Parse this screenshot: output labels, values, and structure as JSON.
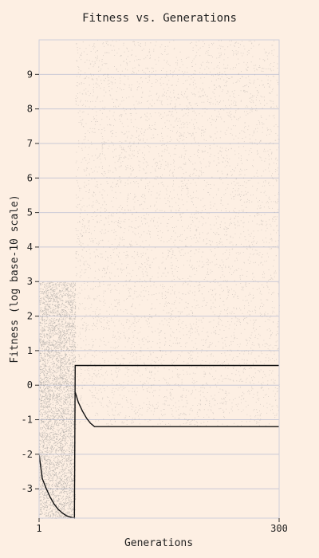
{
  "chart_data": {
    "type": "scatter",
    "title": "Fitness vs. Generations",
    "xlabel": "Generations",
    "ylabel": "Fitness (log base-10 scale)",
    "xlim": [
      1,
      300
    ],
    "ylim": [
      -3.85,
      10
    ],
    "x_ticks": [
      1,
      300
    ],
    "y_ticks": [
      -3,
      -2,
      -1,
      0,
      1,
      2,
      3,
      4,
      5,
      6,
      7,
      8,
      9
    ],
    "grid": "horizontal",
    "colors": {
      "background": "#fdefe3",
      "grid": "#c9c9d6",
      "frame": "#cfcfdb",
      "points": "#8a8a8a",
      "best_line": "#111111"
    },
    "regions": [
      {
        "x": [
          1,
          46
        ],
        "y": [
          -3.85,
          3.0
        ],
        "description": "dense initial population"
      },
      {
        "x": [
          46,
          300
        ],
        "y": [
          -1.2,
          10
        ],
        "description": "sparse population after jump"
      }
    ],
    "series": [
      {
        "x": [
          1,
          5,
          10,
          15,
          20,
          25,
          30,
          35,
          40,
          45,
          46,
          50,
          55,
          60,
          70,
          80,
          100,
          150,
          200,
          250,
          300
        ],
        "y": [
          -2.0,
          -2.7,
          -3.0,
          -3.25,
          -3.45,
          -3.6,
          -3.7,
          -3.78,
          -3.82,
          -3.85,
          0.57,
          0.57,
          0.57,
          0.57,
          0.57,
          0.57,
          0.57,
          0.57,
          0.57,
          0.57,
          0.57
        ]
      },
      {
        "x": [
          46,
          50,
          55,
          60,
          65,
          70,
          80,
          100,
          150,
          200,
          250,
          300
        ],
        "y": [
          -0.2,
          -0.5,
          -0.75,
          -0.95,
          -1.1,
          -1.2,
          -1.2,
          -1.2,
          -1.2,
          -1.2,
          -1.2,
          -1.2
        ]
      }
    ]
  }
}
